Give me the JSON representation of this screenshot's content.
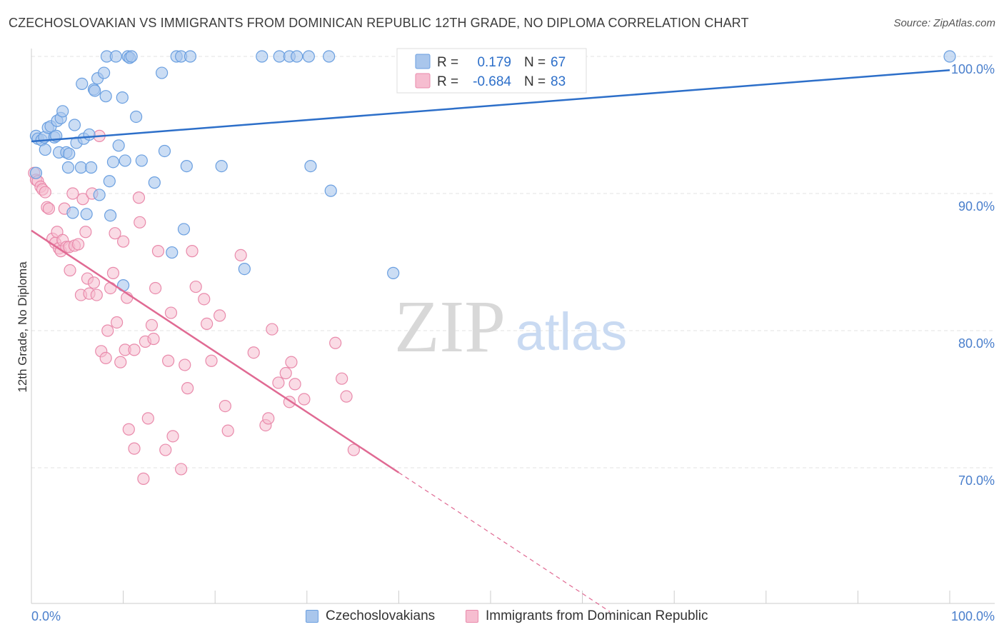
{
  "header": {
    "title": "CZECHOSLOVAKIAN VS IMMIGRANTS FROM DOMINICAN REPUBLIC 12TH GRADE, NO DIPLOMA CORRELATION CHART",
    "source": "Source: ZipAtlas.com"
  },
  "watermark": {
    "zip": "ZIP",
    "atlas": "atlas"
  },
  "colors": {
    "blue_fill": "#a9c6ec",
    "blue_stroke": "#6a9fe0",
    "blue_line": "#2d6fc9",
    "pink_fill": "#f6bdd0",
    "pink_stroke": "#e98aab",
    "pink_line": "#e06a93",
    "axis_label": "#4a7fcc",
    "grid": "#e3e3e3"
  },
  "legend": {
    "rows": [
      {
        "r_label": "R =",
        "r_value": "0.179",
        "n_label": "N =",
        "n_value": "67"
      },
      {
        "r_label": "R =",
        "r_value": "-0.684",
        "n_label": "N =",
        "n_value": "83"
      }
    ]
  },
  "bottom_legend": {
    "items": [
      "Czechoslovakians",
      "Immigrants from Dominican Republic"
    ]
  },
  "chart_data": {
    "type": "scatter",
    "title": "CZECHOSLOVAKIAN VS IMMIGRANTS FROM DOMINICAN REPUBLIC 12TH GRADE, NO DIPLOMA CORRELATION CHART",
    "xlabel": "",
    "ylabel": "12th Grade, No Diploma",
    "xlim": [
      0,
      100
    ],
    "ylim": [
      59.5,
      101.5
    ],
    "x_tick_labels": [
      "0.0%",
      "100.0%"
    ],
    "y_ticks": [
      70,
      80,
      90,
      100
    ],
    "y_tick_labels": [
      "70.0%",
      "80.0%",
      "90.0%",
      "100.0%"
    ],
    "grid": true,
    "legend_position": "top-center",
    "series": [
      {
        "name": "Czechoslovakians",
        "r": 0.179,
        "n": 67,
        "trend": {
          "x": [
            0,
            100
          ],
          "y": [
            93.8,
            99.0
          ],
          "solid_until": 100
        },
        "points": [
          [
            0.5,
            94.2
          ],
          [
            0.7,
            94.0
          ],
          [
            0.5,
            91.5
          ],
          [
            1.1,
            93.9
          ],
          [
            1.4,
            94.1
          ],
          [
            1.8,
            94.8
          ],
          [
            1.5,
            93.2
          ],
          [
            2.1,
            94.9
          ],
          [
            2.5,
            94.1
          ],
          [
            2.7,
            94.2
          ],
          [
            2.8,
            95.3
          ],
          [
            3.2,
            95.5
          ],
          [
            3.4,
            96.0
          ],
          [
            3.0,
            93.0
          ],
          [
            3.8,
            93.0
          ],
          [
            4.1,
            92.9
          ],
          [
            4.0,
            91.9
          ],
          [
            4.5,
            88.6
          ],
          [
            4.7,
            95.0
          ],
          [
            4.9,
            93.7
          ],
          [
            5.4,
            91.9
          ],
          [
            5.5,
            98.0
          ],
          [
            5.7,
            94.0
          ],
          [
            6.0,
            88.5
          ],
          [
            6.3,
            94.3
          ],
          [
            6.5,
            91.9
          ],
          [
            6.8,
            97.6
          ],
          [
            6.9,
            97.5
          ],
          [
            7.2,
            98.4
          ],
          [
            7.4,
            89.9
          ],
          [
            7.9,
            98.8
          ],
          [
            8.1,
            97.1
          ],
          [
            8.2,
            100.0
          ],
          [
            8.5,
            90.9
          ],
          [
            8.6,
            88.4
          ],
          [
            8.9,
            92.3
          ],
          [
            9.2,
            100.0
          ],
          [
            9.5,
            93.5
          ],
          [
            9.9,
            97.0
          ],
          [
            10.0,
            83.3
          ],
          [
            10.2,
            92.4
          ],
          [
            10.5,
            100.0
          ],
          [
            10.7,
            99.9
          ],
          [
            10.9,
            100.0
          ],
          [
            11.4,
            95.6
          ],
          [
            12.0,
            92.4
          ],
          [
            13.4,
            90.8
          ],
          [
            14.2,
            98.8
          ],
          [
            14.5,
            93.1
          ],
          [
            15.3,
            85.7
          ],
          [
            15.8,
            100.0
          ],
          [
            16.3,
            100.0
          ],
          [
            16.6,
            87.4
          ],
          [
            16.9,
            92.0
          ],
          [
            17.3,
            100.0
          ],
          [
            20.7,
            92.0
          ],
          [
            23.2,
            84.5
          ],
          [
            25.1,
            100.0
          ],
          [
            27.0,
            100.0
          ],
          [
            28.1,
            100.0
          ],
          [
            28.9,
            100.0
          ],
          [
            30.2,
            100.0
          ],
          [
            30.4,
            92.0
          ],
          [
            32.4,
            100.0
          ],
          [
            32.6,
            90.2
          ],
          [
            39.4,
            84.2
          ],
          [
            100.0,
            100.0
          ]
        ]
      },
      {
        "name": "Immigrants from Dominican Republic",
        "r": -0.684,
        "n": 83,
        "trend": {
          "x": [
            0,
            63
          ],
          "y": [
            87.3,
            59.5
          ],
          "solid_until": 40
        },
        "points": [
          [
            0.3,
            91.5
          ],
          [
            0.5,
            91.0
          ],
          [
            0.7,
            90.9
          ],
          [
            1.0,
            90.5
          ],
          [
            1.2,
            90.3
          ],
          [
            1.5,
            90.1
          ],
          [
            1.7,
            89.0
          ],
          [
            1.9,
            88.9
          ],
          [
            2.3,
            86.7
          ],
          [
            2.6,
            86.4
          ],
          [
            2.8,
            87.2
          ],
          [
            3.0,
            86.0
          ],
          [
            3.2,
            85.8
          ],
          [
            3.4,
            86.6
          ],
          [
            3.6,
            88.9
          ],
          [
            3.8,
            86.1
          ],
          [
            4.1,
            86.1
          ],
          [
            4.2,
            84.4
          ],
          [
            4.5,
            90.0
          ],
          [
            4.7,
            86.2
          ],
          [
            5.1,
            86.3
          ],
          [
            5.4,
            82.6
          ],
          [
            5.6,
            89.6
          ],
          [
            5.9,
            87.2
          ],
          [
            6.1,
            83.8
          ],
          [
            6.3,
            82.7
          ],
          [
            6.6,
            90.0
          ],
          [
            6.8,
            83.5
          ],
          [
            7.1,
            82.6
          ],
          [
            7.4,
            94.2
          ],
          [
            7.6,
            78.5
          ],
          [
            8.1,
            78.0
          ],
          [
            8.3,
            80.0
          ],
          [
            8.6,
            83.1
          ],
          [
            8.9,
            84.2
          ],
          [
            9.1,
            87.1
          ],
          [
            9.3,
            80.6
          ],
          [
            9.7,
            77.7
          ],
          [
            10.0,
            86.5
          ],
          [
            10.2,
            78.6
          ],
          [
            10.4,
            82.4
          ],
          [
            10.6,
            72.8
          ],
          [
            11.2,
            71.4
          ],
          [
            11.2,
            78.6
          ],
          [
            11.7,
            89.7
          ],
          [
            11.8,
            87.9
          ],
          [
            12.2,
            69.2
          ],
          [
            12.4,
            79.2
          ],
          [
            12.7,
            73.6
          ],
          [
            13.1,
            80.4
          ],
          [
            13.3,
            79.4
          ],
          [
            13.5,
            83.1
          ],
          [
            13.8,
            85.8
          ],
          [
            14.6,
            71.3
          ],
          [
            14.9,
            77.8
          ],
          [
            15.2,
            81.3
          ],
          [
            15.4,
            72.3
          ],
          [
            16.3,
            69.9
          ],
          [
            16.7,
            77.5
          ],
          [
            17.0,
            75.8
          ],
          [
            17.5,
            85.8
          ],
          [
            17.9,
            83.2
          ],
          [
            18.8,
            82.3
          ],
          [
            19.1,
            80.5
          ],
          [
            19.6,
            77.8
          ],
          [
            20.5,
            81.1
          ],
          [
            21.1,
            74.5
          ],
          [
            21.4,
            72.7
          ],
          [
            22.8,
            85.5
          ],
          [
            24.2,
            78.4
          ],
          [
            25.5,
            73.1
          ],
          [
            25.8,
            73.6
          ],
          [
            26.2,
            80.1
          ],
          [
            26.9,
            76.2
          ],
          [
            27.7,
            76.9
          ],
          [
            28.1,
            74.8
          ],
          [
            28.3,
            77.7
          ],
          [
            28.7,
            76.1
          ],
          [
            29.7,
            75.0
          ],
          [
            33.1,
            79.1
          ],
          [
            33.8,
            76.5
          ],
          [
            34.3,
            75.2
          ],
          [
            35.1,
            71.3
          ]
        ]
      }
    ]
  }
}
